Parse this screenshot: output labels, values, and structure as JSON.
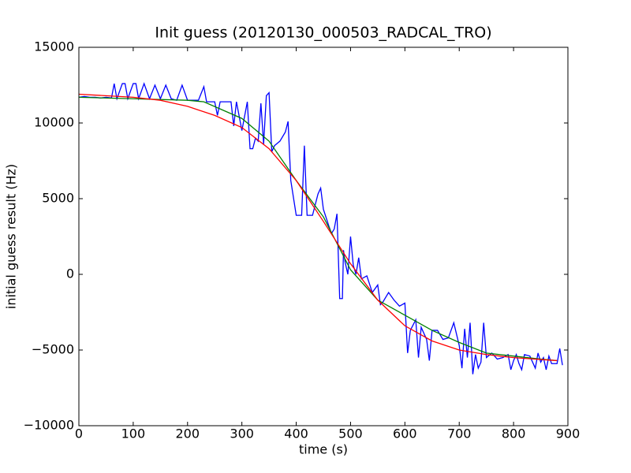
{
  "chart_data": {
    "type": "line",
    "title": "Init guess (20120130_000503_RADCAL_TRO)",
    "x_label": "time (s)",
    "y_label": "initial guess result (Hz)",
    "xlim": [
      0,
      900
    ],
    "xticks": [
      0,
      100,
      200,
      300,
      400,
      500,
      600,
      700,
      800,
      900
    ],
    "ylim": [
      -10000,
      15000
    ],
    "yticks": [
      {
        "value": -10000,
        "label": "−10000"
      },
      {
        "value": -5000,
        "label": "−5000"
      },
      0,
      5000,
      10000,
      15000
    ],
    "grid": false,
    "series": [
      {
        "color": "#0000ff",
        "x": [
          0,
          10,
          20,
          30,
          40,
          50,
          60,
          65,
          70,
          80,
          85,
          90,
          100,
          105,
          110,
          120,
          130,
          140,
          150,
          160,
          170,
          180,
          190,
          200,
          210,
          220,
          230,
          235,
          250,
          255,
          260,
          280,
          285,
          290,
          300,
          310,
          315,
          320,
          325,
          330,
          335,
          340,
          345,
          350,
          355,
          360,
          370,
          380,
          385,
          390,
          400,
          410,
          415,
          420,
          430,
          440,
          445,
          450,
          460,
          465,
          470,
          475,
          480,
          485,
          487,
          490,
          495,
          500,
          505,
          510,
          515,
          520,
          530,
          540,
          550,
          555,
          560,
          570,
          580,
          590,
          600,
          605,
          610,
          620,
          625,
          630,
          640,
          645,
          650,
          660,
          670,
          680,
          690,
          700,
          705,
          710,
          715,
          720,
          725,
          730,
          735,
          740,
          745,
          750,
          760,
          770,
          780,
          790,
          795,
          800,
          805,
          810,
          815,
          820,
          830,
          840,
          845,
          850,
          855,
          860,
          865,
          870,
          880,
          885,
          890
        ],
        "values": [
          11700,
          11750,
          11700,
          11700,
          11650,
          11700,
          11650,
          12600,
          11600,
          12600,
          12600,
          11600,
          12600,
          12600,
          11600,
          12600,
          11600,
          12500,
          11600,
          12500,
          11600,
          11500,
          12500,
          11500,
          11500,
          11500,
          12400,
          11400,
          11400,
          10500,
          11400,
          11400,
          9800,
          11400,
          9500,
          11400,
          8300,
          8300,
          9000,
          8800,
          11300,
          8600,
          11800,
          12000,
          8100,
          8500,
          8800,
          9400,
          10100,
          6200,
          3900,
          3900,
          8500,
          3900,
          3900,
          5300,
          5700,
          4300,
          3200,
          2700,
          3000,
          4000,
          -1600,
          -1600,
          1600,
          800,
          0,
          2500,
          600,
          0,
          1100,
          -300,
          -100,
          -1200,
          -700,
          -2000,
          -1800,
          -1200,
          -1700,
          -2100,
          -1900,
          -5200,
          -3700,
          -3000,
          -5500,
          -3500,
          -4300,
          -5700,
          -3700,
          -3700,
          -4300,
          -4200,
          -3200,
          -4700,
          -6200,
          -3600,
          -5500,
          -3200,
          -6600,
          -5300,
          -6200,
          -5800,
          -3200,
          -5500,
          -5200,
          -5600,
          -5500,
          -5300,
          -6300,
          -5700,
          -5300,
          -5900,
          -6300,
          -5300,
          -5400,
          -6200,
          -5200,
          -5800,
          -5500,
          -6300,
          -5400,
          -5900,
          -5900,
          -4900,
          -6000
        ]
      },
      {
        "color": "#008000",
        "x": [
          0,
          100,
          200,
          230,
          300,
          350,
          400,
          450,
          500,
          550,
          600,
          650,
          700,
          750,
          800,
          850,
          880
        ],
        "values": [
          11700,
          11600,
          11500,
          11400,
          10300,
          8800,
          6200,
          3800,
          300,
          -1700,
          -2700,
          -3700,
          -4500,
          -5200,
          -5400,
          -5600,
          -5700
        ]
      },
      {
        "color": "#ff0000",
        "x": [
          0,
          100,
          150,
          200,
          250,
          300,
          350,
          400,
          450,
          500,
          550,
          600,
          650,
          700,
          750,
          800,
          880
        ],
        "values": [
          11900,
          11700,
          11500,
          11100,
          10500,
          9700,
          8300,
          6200,
          3500,
          700,
          -1700,
          -3400,
          -4400,
          -5000,
          -5300,
          -5500,
          -5700
        ]
      }
    ]
  }
}
